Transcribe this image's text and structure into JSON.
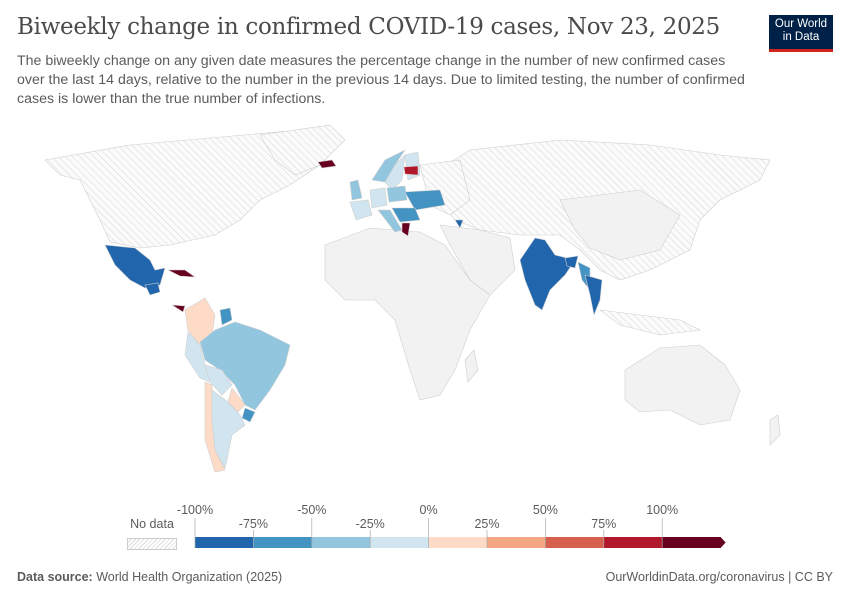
{
  "header": {
    "title": "Biweekly change in confirmed COVID-19 cases, Nov 23, 2025",
    "subtitle": "The biweekly change on any given date measures the percentage change in the number of new confirmed cases over the last 14 days, relative to the number in the previous 14 days. Due to limited testing, the number of confirmed cases is lower than the true number of infections.",
    "logo": "Our World in Data"
  },
  "legend": {
    "no_data_label": "No data",
    "no_data_color": "#e0e0e0",
    "upper_labels": [
      "-100%",
      "-50%",
      "0%",
      "50%",
      "100%"
    ],
    "lower_labels": [
      "-75%",
      "-25%",
      "25%",
      "75%"
    ],
    "bins": [
      {
        "range": "-100% to -75%",
        "color": "#2166ac"
      },
      {
        "range": "-75% to -50%",
        "color": "#4393c3"
      },
      {
        "range": "-50% to -25%",
        "color": "#92c5de"
      },
      {
        "range": "-25% to 0%",
        "color": "#d1e5f0"
      },
      {
        "range": "0% to 25%",
        "color": "#fddbc7"
      },
      {
        "range": "25% to 50%",
        "color": "#f4a582"
      },
      {
        "range": "50% to 75%",
        "color": "#d6604d"
      },
      {
        "range": "75% to 100%",
        "color": "#b2182b"
      },
      {
        "range": ">100%",
        "color": "#67001f"
      }
    ]
  },
  "map": {
    "country_bins": {
      "mexico": 0,
      "guatemala": 0,
      "cuba": 8,
      "jamaica": 8,
      "panama": 8,
      "colombia": 4,
      "guyana": 1,
      "suriname": 1,
      "brazil": 2,
      "peru": 3,
      "bolivia": 3,
      "chile": 4,
      "argentina": 3,
      "uruguay": 1,
      "paraguay": 4,
      "iceland": 8,
      "norway": 2,
      "sweden": 3,
      "finland": 3,
      "baltics": 8,
      "uk": 2,
      "france": 3,
      "germany": 3,
      "poland": 2,
      "ukraine": 1,
      "romania": 1,
      "italy": 2,
      "balkans": 1,
      "greece": 8,
      "georgia": 0,
      "india": 0,
      "bangladesh": 0,
      "myanmar": 1,
      "thailand": 0
    }
  },
  "footer": {
    "source_label": "Data source:",
    "source": "World Health Organization (2025)",
    "link": "OurWorldinData.org/coronavirus | CC BY"
  }
}
